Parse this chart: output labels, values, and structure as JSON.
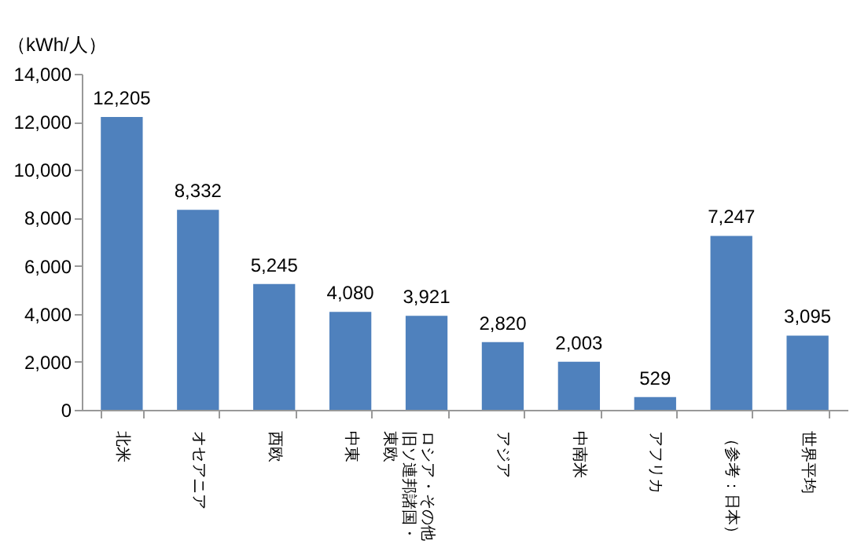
{
  "chart_data": {
    "type": "bar",
    "ylabel": "（kWh/人）",
    "categories": [
      "北米",
      "オセアニア",
      "西欧",
      "中東",
      "ロシア・その他旧ソ連邦諸国・東欧",
      "アジア",
      "中南米",
      "アフリカ",
      "（参考：日本）",
      "世界平均"
    ],
    "values": [
      12205,
      8332,
      5245,
      4080,
      3921,
      2820,
      2003,
      529,
      7247,
      3095
    ],
    "value_labels": [
      "12,205",
      "8,332",
      "5,245",
      "4,080",
      "3,921",
      "2,820",
      "2,003",
      "529",
      "7,247",
      "3,095"
    ],
    "color": "#4f81bd",
    "ylim": [
      0,
      14000
    ],
    "yticks": [
      0,
      {
        "value": 2000,
        "label": "2,000"
      },
      {
        "value": 4000,
        "label": "4,000"
      },
      {
        "value": 6000,
        "label": "6,000"
      },
      {
        "value": 8000,
        "label": "8,000"
      },
      {
        "value": 10000,
        "label": "10,000"
      },
      {
        "value": 12000,
        "label": "12,000"
      },
      {
        "value": 14000,
        "label": "14,000"
      }
    ],
    "grid": false
  }
}
